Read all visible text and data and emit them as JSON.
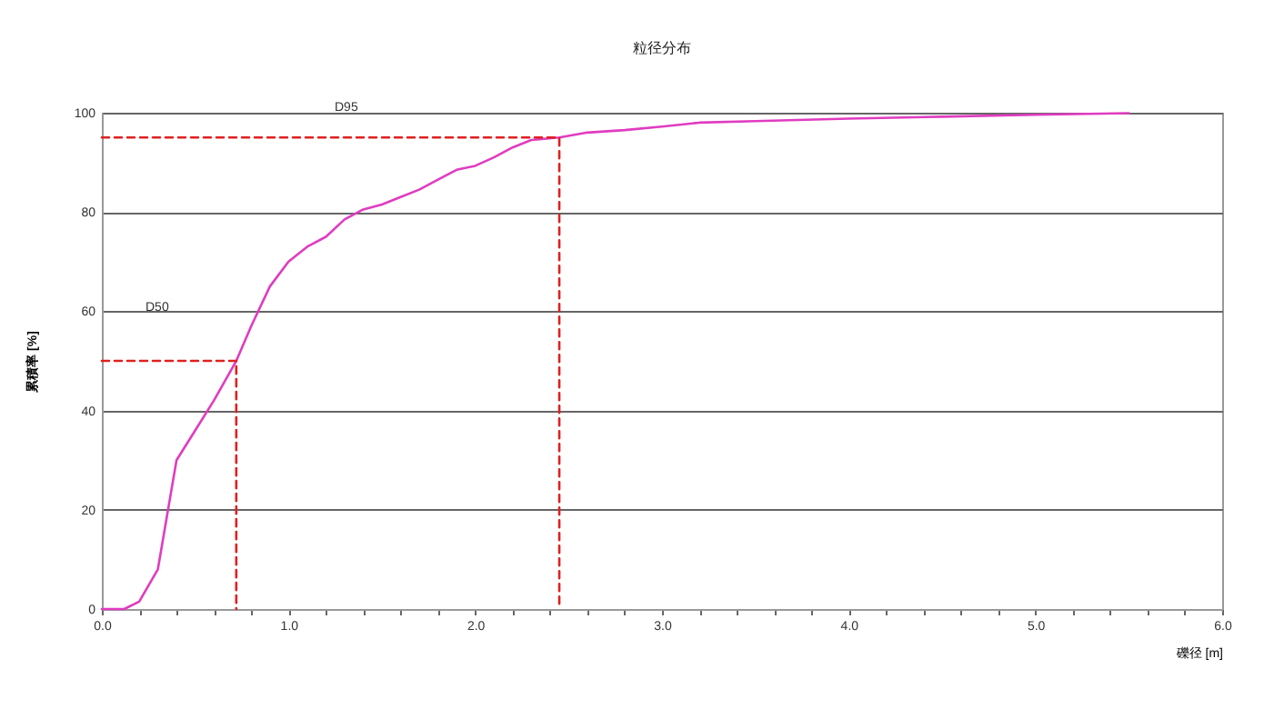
{
  "chart_data": {
    "type": "line",
    "title": "粒径分布",
    "xlabel": "礫径 [m]",
    "ylabel": "累積率 [%]",
    "xlim": [
      0,
      6
    ],
    "ylim": [
      0,
      100
    ],
    "xticks": [
      {
        "value": 0,
        "label": "0.0"
      },
      {
        "value": 0.2,
        "label": null
      },
      {
        "value": 0.4,
        "label": null
      },
      {
        "value": 0.6,
        "label": null
      },
      {
        "value": 0.8,
        "label": null
      },
      {
        "value": 1,
        "label": "1.0"
      },
      {
        "value": 1.2,
        "label": null
      },
      {
        "value": 1.4,
        "label": null
      },
      {
        "value": 1.6,
        "label": null
      },
      {
        "value": 1.8,
        "label": null
      },
      {
        "value": 2,
        "label": "2.0"
      },
      {
        "value": 2.2,
        "label": null
      },
      {
        "value": 2.4,
        "label": null
      },
      {
        "value": 2.6,
        "label": null
      },
      {
        "value": 2.8,
        "label": null
      },
      {
        "value": 3,
        "label": "3.0"
      },
      {
        "value": 3.2,
        "label": null
      },
      {
        "value": 3.4,
        "label": null
      },
      {
        "value": 3.6,
        "label": null
      },
      {
        "value": 3.8,
        "label": null
      },
      {
        "value": 4,
        "label": "4.0"
      },
      {
        "value": 4.2,
        "label": null
      },
      {
        "value": 4.4,
        "label": null
      },
      {
        "value": 4.6,
        "label": null
      },
      {
        "value": 4.8,
        "label": null
      },
      {
        "value": 5,
        "label": "5.0"
      },
      {
        "value": 5.2,
        "label": null
      },
      {
        "value": 5.4,
        "label": null
      },
      {
        "value": 5.6,
        "label": null
      },
      {
        "value": 5.8,
        "label": null
      },
      {
        "value": 6,
        "label": "6.0"
      }
    ],
    "yticks": [
      0,
      20,
      40,
      60,
      80,
      100
    ],
    "grid": "y",
    "series": [
      {
        "color": "#e03cc0",
        "line_style": "solid",
        "x": [
          0,
          0.12,
          0.2,
          0.3,
          0.4,
          0.5,
          0.6,
          0.72,
          0.8,
          0.9,
          1.0,
          1.1,
          1.2,
          1.3,
          1.4,
          1.5,
          1.6,
          1.7,
          1.8,
          1.9,
          2.0,
          2.1,
          2.2,
          2.3,
          2.45,
          2.6,
          2.8,
          3.0,
          3.2,
          3.5,
          4.0,
          4.5,
          5.0,
          5.5
        ],
        "values": [
          0,
          0,
          1.5,
          8,
          30,
          36,
          42,
          50,
          57,
          65,
          70,
          73,
          75,
          78.5,
          80.5,
          81.5,
          83,
          84.5,
          86.5,
          88.5,
          89.3,
          91,
          93,
          94.5,
          95,
          96,
          96.5,
          97.2,
          98,
          98.3,
          98.8,
          99.2,
          99.6,
          99.9
        ]
      },
      {
        "color": "#e02020",
        "line_style": "dashed",
        "x": [
          0,
          0.72,
          0.72
        ],
        "values": [
          50,
          50,
          0
        ]
      },
      {
        "color": "#e02020",
        "line_style": "dashed",
        "x": [
          0,
          2.45,
          2.45
        ],
        "values": [
          95,
          95,
          0
        ]
      }
    ],
    "annotations": [
      "D50",
      "D95"
    ]
  }
}
